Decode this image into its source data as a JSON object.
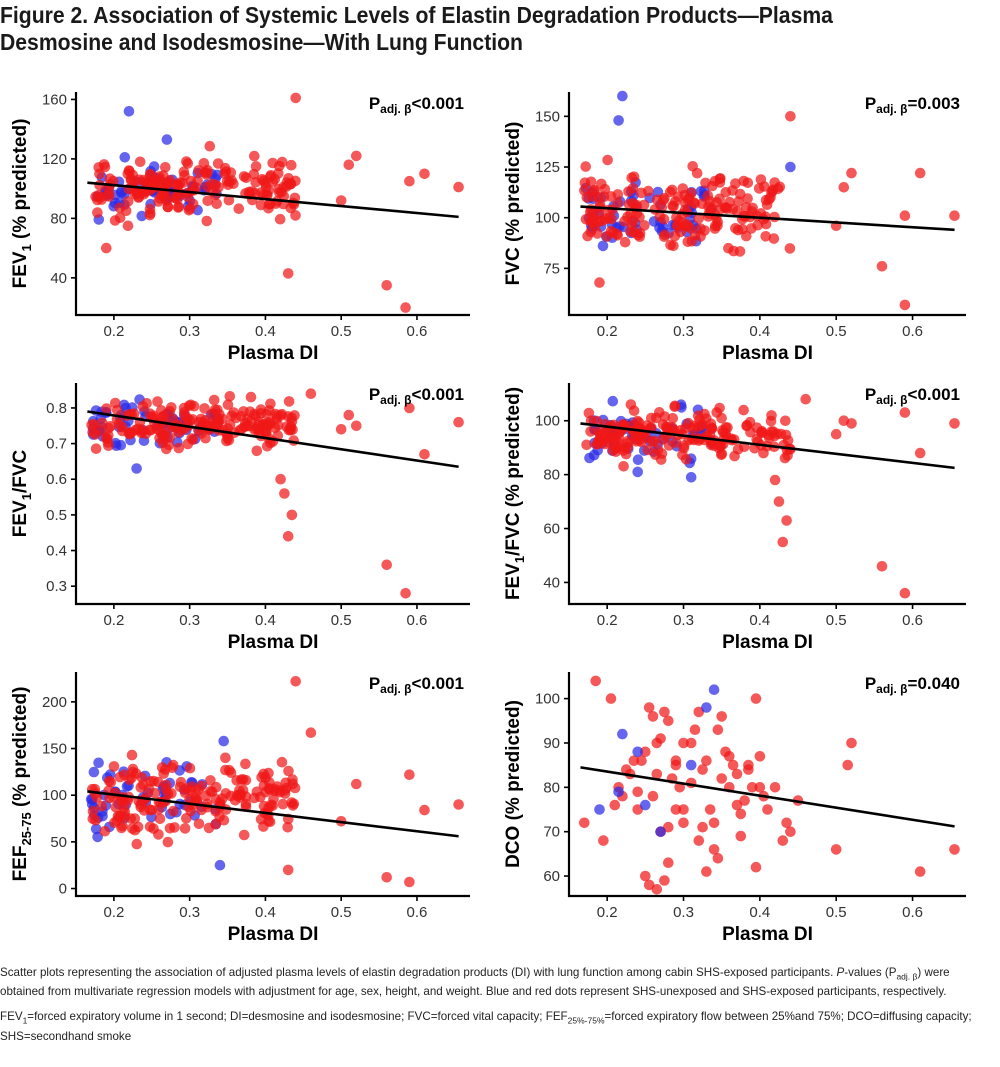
{
  "figure": {
    "title_line1": "Figure 2. Association of Systemic Levels of Elastin Degradation Products—Plasma",
    "title_line2": "Desmosine and Isodesmosine—With Lung Function"
  },
  "caption": {
    "para1_a": "Scatter plots representing the association of adjusted plasma levels of elastin degradation products (DI) with lung function among cabin SHS-exposed participants. ",
    "para1_p": "P",
    "para1_b": "-values (P",
    "para1_sub": "adj. β",
    "para1_c": ") were obtained from multivariate regression models with adjustment for age, sex, height, and weight. Blue and red dots represent SHS-unexposed and SHS-exposed participants, respectively.",
    "para2_a": "FEV",
    "para2_sub1": "1",
    "para2_b": "=forced expiratory volume in 1 second; DI=desmosine and isodesmosine; FVC=forced vital capacity;  FEF",
    "para2_sub2": "25%-75%",
    "para2_c": "=forced expiratory flow between 25%and 75%; DCO=diffusing capacity; SHS=secondhand smoke"
  },
  "colors": {
    "unexposed": "#2a2ae8",
    "exposed": "#f01818",
    "line": "#000000"
  },
  "chart_data": [
    {
      "id": "fev1",
      "type": "scatter",
      "ylabel_main": "FEV",
      "ylabel_sub": "1",
      "ylabel_rest": " (% predicted)",
      "xlabel": "Plasma DI",
      "p_label": "P",
      "p_sub": "adj. β",
      "p_value": "<0.001",
      "xlim": [
        0.15,
        0.67
      ],
      "ylim": [
        15,
        165
      ],
      "xticks": [
        0.2,
        0.3,
        0.4,
        0.5,
        0.6
      ],
      "yticks": [
        40,
        80,
        120,
        160
      ],
      "regression": {
        "x": [
          0.165,
          0.655
        ],
        "y": [
          104,
          81
        ]
      },
      "outliers_exposed": [
        [
          0.44,
          161
        ],
        [
          0.52,
          122
        ],
        [
          0.51,
          116
        ],
        [
          0.5,
          92
        ],
        [
          0.59,
          105
        ],
        [
          0.61,
          110
        ],
        [
          0.655,
          101
        ],
        [
          0.56,
          35
        ],
        [
          0.585,
          20
        ],
        [
          0.43,
          43
        ],
        [
          0.19,
          60
        ]
      ],
      "cluster": {
        "xmin": 0.17,
        "xmax": 0.44,
        "ymin": 62,
        "ymax": 140,
        "ycenter": 100,
        "n_exposed": 190,
        "n_unexposed": 55,
        "seed": 11,
        "extra_unexposed": [
          [
            0.22,
            152
          ],
          [
            0.27,
            133
          ]
        ]
      }
    },
    {
      "id": "fvc",
      "type": "scatter",
      "ylabel_main": "FVC (% predicted)",
      "ylabel_sub": "",
      "ylabel_rest": "",
      "xlabel": "Plasma DI",
      "p_label": "P",
      "p_sub": "adj. β",
      "p_value": "=0.003",
      "xlim": [
        0.15,
        0.67
      ],
      "ylim": [
        52,
        162
      ],
      "xticks": [
        0.2,
        0.3,
        0.4,
        0.5,
        0.6
      ],
      "yticks": [
        75,
        100,
        125,
        150
      ],
      "regression": {
        "x": [
          0.165,
          0.655
        ],
        "y": [
          105.5,
          94
        ]
      },
      "outliers_exposed": [
        [
          0.44,
          150
        ],
        [
          0.52,
          122
        ],
        [
          0.51,
          115
        ],
        [
          0.5,
          96
        ],
        [
          0.61,
          122
        ],
        [
          0.59,
          101
        ],
        [
          0.655,
          101
        ],
        [
          0.56,
          76
        ],
        [
          0.59,
          57
        ],
        [
          0.19,
          68
        ]
      ],
      "cluster": {
        "xmin": 0.17,
        "xmax": 0.44,
        "ymin": 65,
        "ymax": 140,
        "ycenter": 103,
        "n_exposed": 190,
        "n_unexposed": 55,
        "seed": 23,
        "extra_unexposed": [
          [
            0.22,
            160
          ],
          [
            0.215,
            148
          ],
          [
            0.44,
            125
          ]
        ]
      }
    },
    {
      "id": "fev1fvc",
      "type": "scatter",
      "ylabel_main": "FEV",
      "ylabel_sub": "1",
      "ylabel_rest": "/FVC",
      "xlabel": "Plasma DI",
      "p_label": "P",
      "p_sub": "adj. β",
      "p_value": "<0.001",
      "xlim": [
        0.15,
        0.67
      ],
      "ylim": [
        0.25,
        0.87
      ],
      "xticks": [
        0.2,
        0.3,
        0.4,
        0.5,
        0.6
      ],
      "yticks": [
        0.3,
        0.4,
        0.5,
        0.6,
        0.7,
        0.8
      ],
      "regression": {
        "x": [
          0.165,
          0.655
        ],
        "y": [
          0.79,
          0.635
        ]
      },
      "outliers_exposed": [
        [
          0.46,
          0.84
        ],
        [
          0.5,
          0.74
        ],
        [
          0.51,
          0.78
        ],
        [
          0.52,
          0.75
        ],
        [
          0.59,
          0.8
        ],
        [
          0.61,
          0.67
        ],
        [
          0.655,
          0.76
        ],
        [
          0.56,
          0.36
        ],
        [
          0.585,
          0.28
        ],
        [
          0.43,
          0.44
        ],
        [
          0.435,
          0.5
        ],
        [
          0.425,
          0.56
        ],
        [
          0.42,
          0.6
        ]
      ],
      "cluster": {
        "xmin": 0.17,
        "xmax": 0.44,
        "ymin": 0.61,
        "ymax": 0.86,
        "ycenter": 0.755,
        "n_exposed": 190,
        "n_unexposed": 55,
        "seed": 37,
        "extra_unexposed": [
          [
            0.23,
            0.63
          ]
        ]
      }
    },
    {
      "id": "fev1fvcpct",
      "type": "scatter",
      "ylabel_main": "FEV",
      "ylabel_sub": "1",
      "ylabel_rest": "/FVC (% predicted)",
      "xlabel": "Plasma DI",
      "p_label": "P",
      "p_sub": "adj. β",
      "p_value": "<0.001",
      "xlim": [
        0.15,
        0.67
      ],
      "ylim": [
        32,
        114
      ],
      "xticks": [
        0.2,
        0.3,
        0.4,
        0.5,
        0.6
      ],
      "yticks": [
        40,
        60,
        80,
        100
      ],
      "regression": {
        "x": [
          0.165,
          0.655
        ],
        "y": [
          99,
          82.5
        ]
      },
      "outliers_exposed": [
        [
          0.46,
          108
        ],
        [
          0.5,
          95
        ],
        [
          0.51,
          100
        ],
        [
          0.52,
          99
        ],
        [
          0.59,
          103
        ],
        [
          0.61,
          88
        ],
        [
          0.655,
          99
        ],
        [
          0.56,
          46
        ],
        [
          0.59,
          36
        ],
        [
          0.43,
          55
        ],
        [
          0.435,
          63
        ],
        [
          0.425,
          70
        ],
        [
          0.42,
          78
        ]
      ],
      "cluster": {
        "xmin": 0.17,
        "xmax": 0.44,
        "ymin": 72,
        "ymax": 110,
        "ycenter": 95,
        "n_exposed": 190,
        "n_unexposed": 55,
        "seed": 53,
        "extra_unexposed": [
          [
            0.24,
            81
          ],
          [
            0.31,
            79
          ]
        ]
      }
    },
    {
      "id": "fef",
      "type": "scatter",
      "ylabel_main": "FEF",
      "ylabel_sub": "25-75",
      "ylabel_rest": " (% predicted)",
      "xlabel": "Plasma DI",
      "p_label": "P",
      "p_sub": "adj. β",
      "p_value": "<0.001",
      "xlim": [
        0.15,
        0.67
      ],
      "ylim": [
        -8,
        232
      ],
      "xticks": [
        0.2,
        0.3,
        0.4,
        0.5,
        0.6
      ],
      "yticks": [
        0,
        50,
        100,
        150,
        200
      ],
      "regression": {
        "x": [
          0.165,
          0.655
        ],
        "y": [
          104,
          56
        ]
      },
      "outliers_exposed": [
        [
          0.44,
          222
        ],
        [
          0.46,
          167
        ],
        [
          0.52,
          112
        ],
        [
          0.5,
          72
        ],
        [
          0.59,
          122
        ],
        [
          0.61,
          84
        ],
        [
          0.655,
          90
        ],
        [
          0.56,
          12
        ],
        [
          0.59,
          7
        ],
        [
          0.43,
          20
        ]
      ],
      "cluster": {
        "xmin": 0.17,
        "xmax": 0.44,
        "ymin": 22,
        "ymax": 185,
        "ycenter": 95,
        "n_exposed": 190,
        "n_unexposed": 55,
        "seed": 71,
        "extra_unexposed": [
          [
            0.345,
            158
          ],
          [
            0.34,
            25
          ]
        ]
      }
    },
    {
      "id": "dco",
      "type": "scatter",
      "ylabel_main": "DCO (% predicted)",
      "ylabel_sub": "",
      "ylabel_rest": "",
      "xlabel": "Plasma DI",
      "p_label": "P",
      "p_sub": "adj. β",
      "p_value": "=0.040",
      "xlim": [
        0.15,
        0.67
      ],
      "ylim": [
        55.5,
        106
      ],
      "xticks": [
        0.2,
        0.3,
        0.4,
        0.5,
        0.6
      ],
      "yticks": [
        60,
        70,
        80,
        90,
        100
      ],
      "regression": {
        "x": [
          0.165,
          0.655
        ],
        "y": [
          84.5,
          71.2
        ]
      },
      "points_exposed": [
        [
          0.185,
          104
        ],
        [
          0.205,
          100
        ],
        [
          0.17,
          72
        ],
        [
          0.195,
          68
        ],
        [
          0.21,
          76
        ],
        [
          0.215,
          80
        ],
        [
          0.225,
          84
        ],
        [
          0.23,
          83
        ],
        [
          0.24,
          79
        ],
        [
          0.245,
          86
        ],
        [
          0.25,
          88
        ],
        [
          0.255,
          98
        ],
        [
          0.26,
          96
        ],
        [
          0.265,
          90
        ],
        [
          0.27,
          91
        ],
        [
          0.275,
          97
        ],
        [
          0.28,
          95
        ],
        [
          0.285,
          82
        ],
        [
          0.29,
          86
        ],
        [
          0.295,
          80
        ],
        [
          0.3,
          72
        ],
        [
          0.25,
          60
        ],
        [
          0.255,
          58
        ],
        [
          0.265,
          57
        ],
        [
          0.27,
          70
        ],
        [
          0.28,
          63
        ],
        [
          0.29,
          75
        ],
        [
          0.31,
          81
        ],
        [
          0.315,
          93
        ],
        [
          0.32,
          97
        ],
        [
          0.325,
          84
        ],
        [
          0.33,
          86
        ],
        [
          0.335,
          75
        ],
        [
          0.34,
          72
        ],
        [
          0.345,
          93
        ],
        [
          0.35,
          96
        ],
        [
          0.355,
          88
        ],
        [
          0.36,
          80
        ],
        [
          0.365,
          85
        ],
        [
          0.37,
          83
        ],
        [
          0.375,
          74
        ],
        [
          0.38,
          77
        ],
        [
          0.385,
          85
        ],
        [
          0.39,
          80
        ],
        [
          0.395,
          100
        ],
        [
          0.4,
          87
        ],
        [
          0.405,
          78
        ],
        [
          0.41,
          75
        ],
        [
          0.42,
          80
        ],
        [
          0.43,
          68
        ],
        [
          0.44,
          70
        ],
        [
          0.45,
          77
        ],
        [
          0.435,
          72
        ],
        [
          0.3,
          75
        ],
        [
          0.31,
          90
        ],
        [
          0.32,
          68
        ],
        [
          0.325,
          71
        ],
        [
          0.33,
          61
        ],
        [
          0.34,
          66
        ],
        [
          0.345,
          64
        ],
        [
          0.35,
          82
        ],
        [
          0.36,
          87
        ],
        [
          0.37,
          76
        ],
        [
          0.375,
          69
        ],
        [
          0.385,
          84
        ],
        [
          0.395,
          62
        ],
        [
          0.4,
          80
        ],
        [
          0.28,
          71
        ],
        [
          0.24,
          75
        ],
        [
          0.235,
          86
        ],
        [
          0.22,
          78
        ],
        [
          0.26,
          78
        ],
        [
          0.265,
          83
        ],
        [
          0.29,
          85
        ],
        [
          0.3,
          90
        ],
        [
          0.5,
          66
        ],
        [
          0.52,
          90
        ],
        [
          0.515,
          85
        ],
        [
          0.61,
          61
        ],
        [
          0.655,
          66
        ],
        [
          0.275,
          59
        ]
      ],
      "points_unexposed": [
        [
          0.19,
          75
        ],
        [
          0.22,
          92
        ],
        [
          0.215,
          79
        ],
        [
          0.24,
          88
        ],
        [
          0.27,
          70
        ],
        [
          0.33,
          98
        ],
        [
          0.34,
          102
        ],
        [
          0.31,
          85
        ],
        [
          0.25,
          76
        ]
      ]
    }
  ]
}
